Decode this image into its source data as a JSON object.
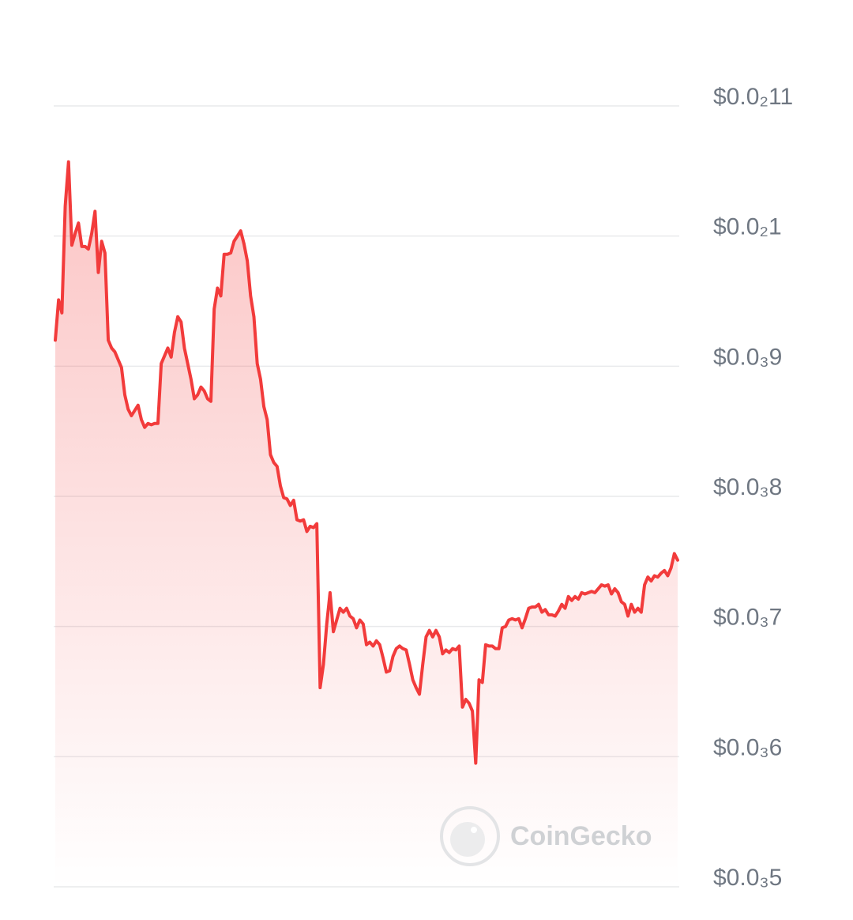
{
  "chart_data": {
    "type": "area",
    "watermark": "CoinGecko",
    "color": "#f23b3b",
    "ylim": [
      0.0005,
      0.0011
    ],
    "yticks": [
      {
        "value": 0.0011,
        "label": "$0.0₂11"
      },
      {
        "value": 0.001,
        "label": "$0.0₂1"
      },
      {
        "value": 0.0009,
        "label": "$0.0₃9"
      },
      {
        "value": 0.0008,
        "label": "$0.0₃8"
      },
      {
        "value": 0.0007,
        "label": "$0.0₃7"
      },
      {
        "value": 0.0006,
        "label": "$0.0₃6"
      },
      {
        "value": 0.0005,
        "label": "$0.0₃5"
      }
    ],
    "grid": true,
    "values": [
      0.00092,
      0.000951,
      0.000941,
      0.001023,
      0.001057,
      0.000993,
      0.001002,
      0.00101,
      0.000992,
      0.000992,
      0.00099,
      0.001002,
      0.001019,
      0.000972,
      0.000996,
      0.000987,
      0.00092,
      0.000914,
      0.000911,
      0.000905,
      0.000899,
      0.000878,
      0.000867,
      0.000862,
      0.000866,
      0.00087,
      0.000859,
      0.000853,
      0.000856,
      0.000855,
      0.000856,
      0.000856,
      0.000902,
      0.000908,
      0.000914,
      0.000907,
      0.000926,
      0.000938,
      0.000934,
      0.000914,
      0.000902,
      0.00089,
      0.000875,
      0.000878,
      0.000884,
      0.000881,
      0.000875,
      0.000873,
      0.000944,
      0.00096,
      0.000954,
      0.000986,
      0.000986,
      0.000987,
      0.000996,
      0.001,
      0.001004,
      0.000994,
      0.000981,
      0.000954,
      0.000938,
      0.000902,
      0.00089,
      0.000869,
      0.000859,
      0.000832,
      0.000826,
      0.000823,
      0.000808,
      0.000799,
      0.000798,
      0.000793,
      0.000797,
      0.000782,
      0.000781,
      0.000782,
      0.000773,
      0.000777,
      0.000776,
      0.000779,
      0.000653,
      0.000671,
      0.000702,
      0.000726,
      0.000696,
      0.000705,
      0.000714,
      0.000711,
      0.000714,
      0.000708,
      0.000706,
      0.000699,
      0.000705,
      0.000702,
      0.000686,
      0.000688,
      0.000685,
      0.000689,
      0.000686,
      0.000676,
      0.000665,
      0.000666,
      0.000677,
      0.000683,
      0.000685,
      0.000683,
      0.000682,
      0.000671,
      0.000659,
      0.000653,
      0.000648,
      0.000671,
      0.000692,
      0.000697,
      0.000692,
      0.000697,
      0.000692,
      0.000679,
      0.000682,
      0.00068,
      0.000683,
      0.000682,
      0.000685,
      0.000638,
      0.000644,
      0.000641,
      0.000635,
      0.000595,
      0.000659,
      0.000657,
      0.000686,
      0.000685,
      0.000685,
      0.000683,
      0.000683,
      0.000699,
      0.0007,
      0.000705,
      0.000706,
      0.000705,
      0.000706,
      0.000699,
      0.000706,
      0.000714,
      0.000715,
      0.000715,
      0.000717,
      0.000711,
      0.000713,
      0.000709,
      0.000709,
      0.000708,
      0.000712,
      0.000717,
      0.000714,
      0.000723,
      0.00072,
      0.000723,
      0.000721,
      0.000726,
      0.000725,
      0.000726,
      0.000727,
      0.000726,
      0.000729,
      0.000732,
      0.000731,
      0.000732,
      0.000725,
      0.000729,
      0.000726,
      0.000719,
      0.000717,
      0.000708,
      0.000717,
      0.000711,
      0.000714,
      0.000711,
      0.000732,
      0.000738,
      0.000735,
      0.000739,
      0.000738,
      0.000741,
      0.000743,
      0.000739,
      0.000745,
      0.000756,
      0.000751
    ]
  }
}
